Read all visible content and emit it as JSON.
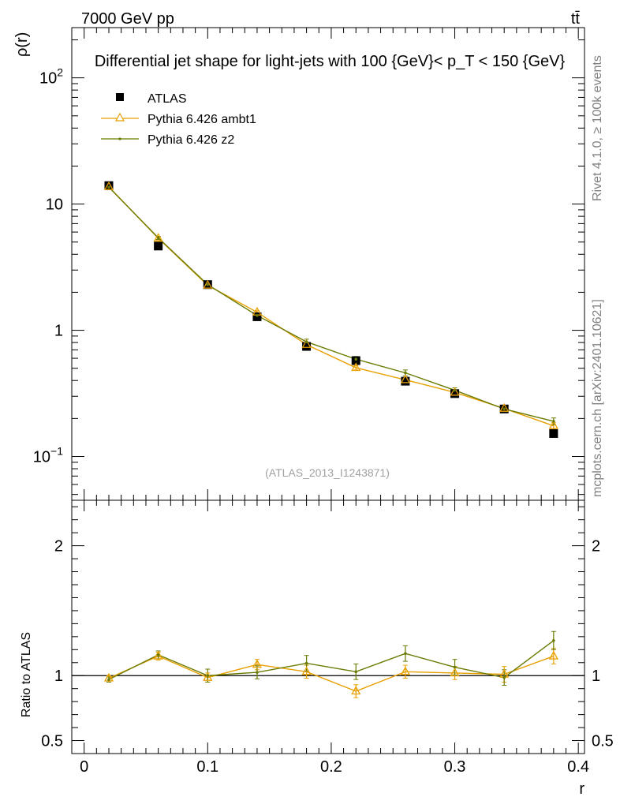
{
  "header": {
    "energy_label": "7000 GeV pp",
    "process_label": "tt̄",
    "side_label_rivet": "Rivet 4.1.0, ≥ 100k events",
    "side_label_mcplots": "mcplots.cern.ch [arXiv:2401.10621]"
  },
  "chart_data": {
    "type": "line",
    "title": "Differential jet shape for light-jets with 100 {GeV}< p_T < 150 {GeV}",
    "xlabel": "r",
    "ylabel": "ρ(r)",
    "ratio_ylabel": "Ratio to ATLAS",
    "analysis_label": "(ATLAS_2013_I1243871)",
    "xlim": [
      -0.01,
      0.405
    ],
    "ylim_log": [
      0.045,
      250
    ],
    "ratio_ylim": [
      0.4,
      2.35
    ],
    "x_ticks": [
      "0",
      "0.1",
      "0.2",
      "0.3",
      "0.4"
    ],
    "x_tick_values": [
      0,
      0.1,
      0.2,
      0.3,
      0.4
    ],
    "ratio_ticks": [
      "0.5",
      "1",
      "2"
    ],
    "ratio_tick_values": [
      0.5,
      1,
      2
    ],
    "legend_position": "top-left",
    "x": [
      0.02,
      0.06,
      0.1,
      0.14,
      0.18,
      0.22,
      0.26,
      0.3,
      0.34,
      0.38
    ],
    "series": [
      {
        "name": "ATLAS",
        "color": "#000000",
        "marker": "square",
        "values": [
          14.0,
          4.65,
          2.3,
          1.28,
          0.745,
          0.575,
          0.395,
          0.315,
          0.238,
          0.152
        ]
      },
      {
        "name": "Pythia 6.426 ambt1",
        "color": "#e8a000",
        "marker": "triangle",
        "values": [
          13.7,
          5.35,
          2.27,
          1.39,
          0.77,
          0.505,
          0.405,
          0.322,
          0.24,
          0.175
        ],
        "errors": [
          0.4,
          0.15,
          0.06,
          0.04,
          0.03,
          0.02,
          0.015,
          0.012,
          0.01,
          0.01
        ],
        "ratio": [
          0.98,
          1.15,
          0.985,
          1.085,
          1.03,
          0.88,
          1.03,
          1.02,
          1.01,
          1.15
        ],
        "ratio_errors": [
          0.02,
          0.03,
          0.035,
          0.04,
          0.05,
          0.05,
          0.05,
          0.05,
          0.06,
          0.06
        ]
      },
      {
        "name": "Pythia 6.426 z2",
        "color": "#6b7a00",
        "marker": "dot",
        "values": [
          13.6,
          5.4,
          2.3,
          1.31,
          0.81,
          0.59,
          0.46,
          0.335,
          0.238,
          0.19
        ],
        "errors": [
          0.4,
          0.15,
          0.06,
          0.04,
          0.04,
          0.03,
          0.025,
          0.015,
          0.012,
          0.012
        ],
        "ratio": [
          0.97,
          1.16,
          1.0,
          1.025,
          1.095,
          1.03,
          1.17,
          1.065,
          0.985,
          1.27
        ],
        "ratio_errors": [
          0.02,
          0.03,
          0.05,
          0.05,
          0.06,
          0.06,
          0.06,
          0.06,
          0.06,
          0.07
        ]
      }
    ]
  }
}
